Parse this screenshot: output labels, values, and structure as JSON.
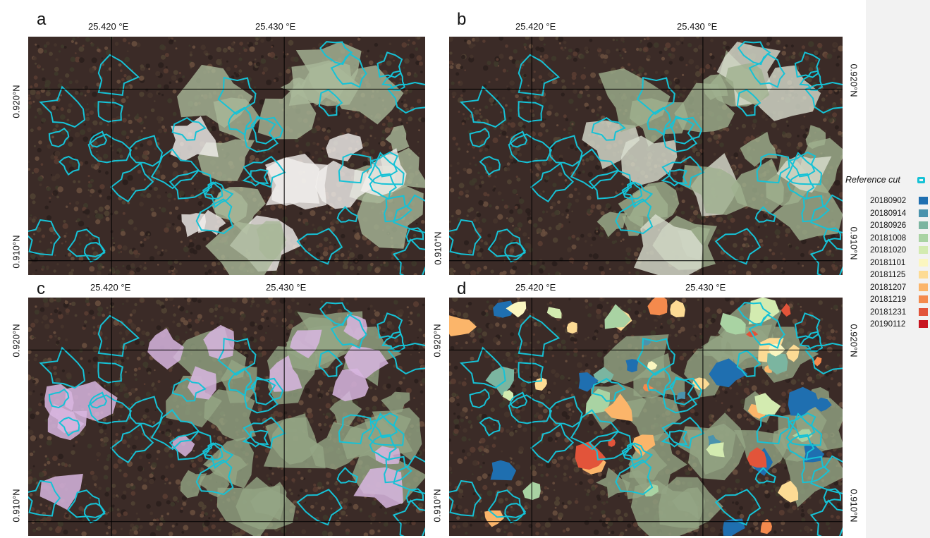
{
  "panels": [
    {
      "letter": "a",
      "lon_labels": [
        "25.420 °E",
        "25.430 °E"
      ],
      "lat_labels": [
        "0.920°N",
        "0.910°N"
      ]
    },
    {
      "letter": "b",
      "lon_labels": [
        "25.420 °E",
        "25.430 °E"
      ],
      "lat_labels": [
        "0.920°N",
        "0.910°N"
      ]
    },
    {
      "letter": "c",
      "lon_labels": [
        "25.420 °E",
        "25.430 °E"
      ],
      "lat_labels": [
        "0.920°N",
        "0.910°N"
      ]
    },
    {
      "letter": "d",
      "lon_labels": [
        "25.420 °E",
        "25.430 °E"
      ],
      "lat_labels": [
        "0.920°N",
        "0.910°N"
      ]
    }
  ],
  "legend": {
    "reference_label": "Reference cut",
    "reference_color": "#16c2d6",
    "items": [
      {
        "date": "20180902",
        "color": "#1f6fb0"
      },
      {
        "date": "20180914",
        "color": "#4a93ad"
      },
      {
        "date": "20180926",
        "color": "#7bb5a0"
      },
      {
        "date": "20181008",
        "color": "#a9d3a3"
      },
      {
        "date": "20181020",
        "color": "#d3ebb0"
      },
      {
        "date": "20181101",
        "color": "#fbf6c0"
      },
      {
        "date": "20181125",
        "color": "#fddb94"
      },
      {
        "date": "20181207",
        "color": "#fbb56a"
      },
      {
        "date": "20181219",
        "color": "#f48a4d"
      },
      {
        "date": "20181231",
        "color": "#e2543a"
      },
      {
        "date": "20190112",
        "color": "#c8141f"
      }
    ]
  }
}
